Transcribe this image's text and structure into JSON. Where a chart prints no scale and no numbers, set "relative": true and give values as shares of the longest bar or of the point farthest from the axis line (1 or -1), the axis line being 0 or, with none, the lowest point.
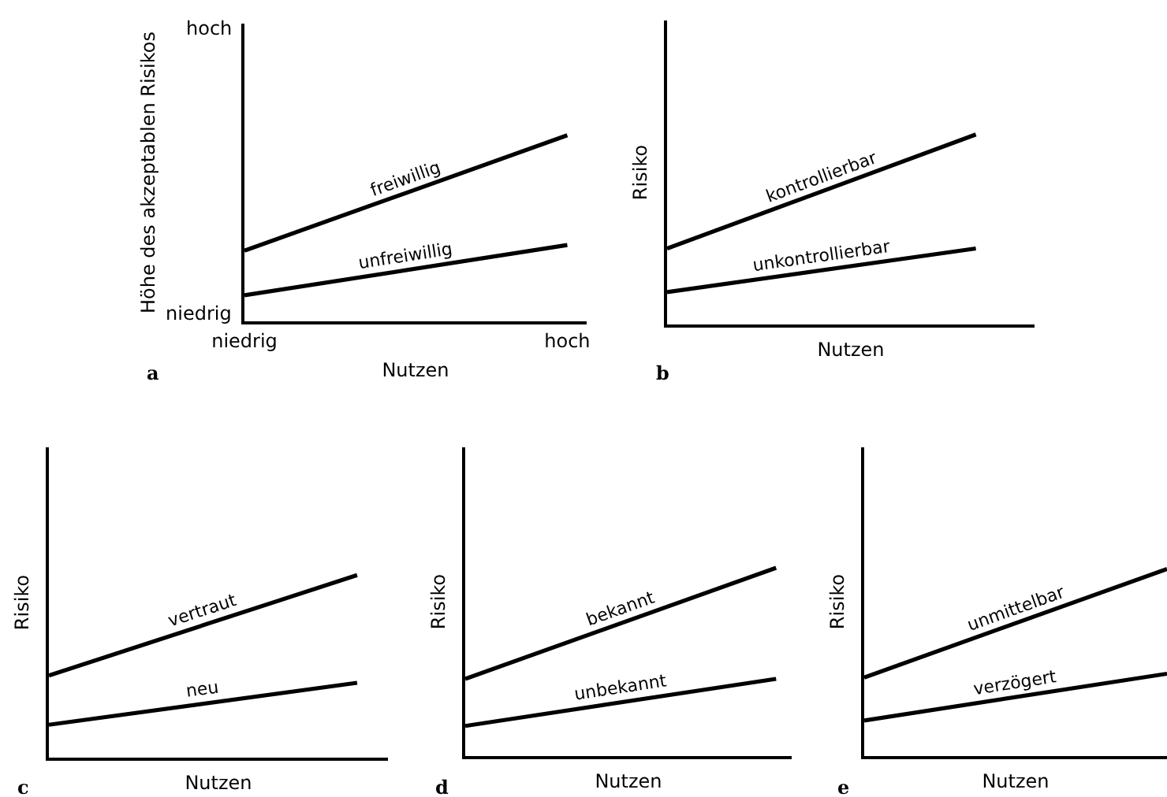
{
  "chart_data": [
    {
      "type": "line",
      "xlabel": "Nutzen",
      "ylabel": "Höhe des akzeptablen Risikos",
      "annotations": [
        "a",
        "hoch",
        "niedrig"
      ],
      "relative": true,
      "categories": [
        "niedrig",
        "hoch"
      ],
      "series": [
        {
          "name": "freiwillig",
          "color": "#000000",
          "values": [
            0.38,
            1
          ]
        },
        {
          "name": "unfreiwillig",
          "color": "#000000",
          "values": [
            0.14,
            0.41
          ]
        }
      ]
    },
    {
      "type": "line",
      "xlabel": "Nutzen",
      "ylabel": "Risiko",
      "annotations": [
        "b"
      ],
      "relative": true,
      "categories": [
        null,
        null
      ],
      "series": [
        {
          "name": "kontrollierbar",
          "color": "#000000",
          "values": [
            0.4,
            1
          ]
        },
        {
          "name": "unkontrollierbar",
          "color": "#000000",
          "values": [
            0.17,
            0.4
          ]
        }
      ]
    },
    {
      "type": "line",
      "xlabel": "Nutzen",
      "ylabel": "Risiko",
      "annotations": [
        "c"
      ],
      "relative": true,
      "categories": [
        null,
        null
      ],
      "series": [
        {
          "name": "vertraut",
          "color": "#000000",
          "values": [
            0.45,
            1
          ]
        },
        {
          "name": "neu",
          "color": "#000000",
          "values": [
            0.18,
            0.41
          ]
        }
      ]
    },
    {
      "type": "line",
      "xlabel": "Nutzen",
      "ylabel": "Risiko",
      "annotations": [
        "d"
      ],
      "relative": true,
      "categories": [
        null,
        null
      ],
      "series": [
        {
          "name": "bekannt",
          "color": "#000000",
          "values": [
            0.41,
            1
          ]
        },
        {
          "name": "unbekannt",
          "color": "#000000",
          "values": [
            0.16,
            0.41
          ]
        }
      ]
    },
    {
      "type": "line",
      "xlabel": "Nutzen",
      "ylabel": "Risiko",
      "annotations": [
        "e"
      ],
      "relative": true,
      "categories": [
        null,
        null
      ],
      "series": [
        {
          "name": "unmittelbar",
          "color": "#000000",
          "values": [
            0.42,
            1
          ]
        },
        {
          "name": "verzögert",
          "color": "#000000",
          "values": [
            0.19,
            0.44
          ]
        }
      ]
    }
  ]
}
